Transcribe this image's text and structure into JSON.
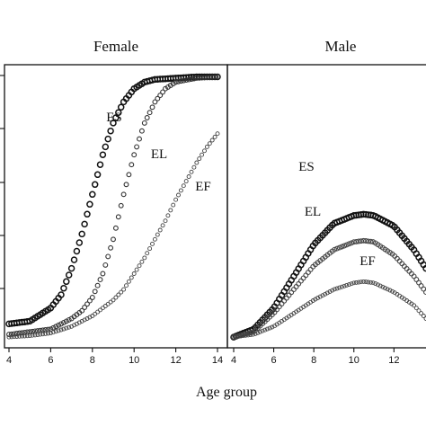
{
  "chart_data": [
    {
      "type": "scatter",
      "title": "Female",
      "xlabel": "Age group",
      "ylabel": "",
      "xlim": [
        4,
        14
      ],
      "ylim": [
        0,
        100
      ],
      "x_ticks": [
        "4",
        "6",
        "8",
        "10",
        "12",
        "14"
      ],
      "series": [
        {
          "name": "ES",
          "x": [
            4,
            5,
            6,
            6.5,
            7,
            7.5,
            8,
            8.5,
            9,
            9.5,
            10,
            10.5,
            11,
            12,
            13,
            14
          ],
          "y": [
            6,
            7,
            12,
            17,
            27,
            40,
            55,
            70,
            82,
            90,
            95,
            97.5,
            98.5,
            99,
            99.5,
            99.5
          ]
        },
        {
          "name": "EL",
          "x": [
            4,
            5,
            6,
            7,
            7.5,
            8,
            8.5,
            9,
            9.5,
            10,
            10.5,
            11,
            11.5,
            12,
            13,
            14
          ],
          "y": [
            2,
            3,
            4,
            8,
            11,
            16,
            25,
            38,
            55,
            70,
            82,
            90,
            95,
            97.5,
            99,
            99.5
          ]
        },
        {
          "name": "EF",
          "x": [
            4,
            5,
            6,
            7,
            8,
            9,
            9.5,
            10,
            10.5,
            11,
            11.5,
            12,
            12.5,
            13,
            13.5,
            14
          ],
          "y": [
            1,
            1.5,
            2.5,
            5,
            9,
            15,
            19,
            25,
            31,
            38,
            45,
            53,
            60,
            67,
            73,
            78
          ]
        }
      ]
    },
    {
      "type": "scatter",
      "title": "Male",
      "xlabel": "Age group",
      "ylabel": "",
      "xlim": [
        4,
        13.6
      ],
      "ylim": [
        0,
        100
      ],
      "x_ticks": [
        "4",
        "6",
        "8",
        "10",
        "12"
      ],
      "series": [
        {
          "name": "ES",
          "x": [
            4,
            5,
            6,
            7,
            8,
            9,
            10,
            10.5,
            11,
            12,
            13,
            13.6
          ],
          "y": [
            1,
            4,
            12,
            24,
            36,
            44,
            47,
            47.5,
            47,
            43,
            34,
            27
          ]
        },
        {
          "name": "EL",
          "x": [
            4,
            5,
            6,
            7,
            8,
            9,
            10,
            10.5,
            11,
            12,
            13,
            13.6
          ],
          "y": [
            1,
            3,
            10,
            19,
            28,
            34,
            37,
            37.5,
            37,
            32,
            24,
            18
          ]
        },
        {
          "name": "EF",
          "x": [
            4,
            5,
            6,
            7,
            8,
            9,
            10,
            10.5,
            11,
            12,
            13,
            13.6
          ],
          "y": [
            1,
            2,
            5,
            10,
            15,
            19,
            21.5,
            22,
            21.5,
            18,
            13,
            8
          ]
        }
      ]
    }
  ]
}
